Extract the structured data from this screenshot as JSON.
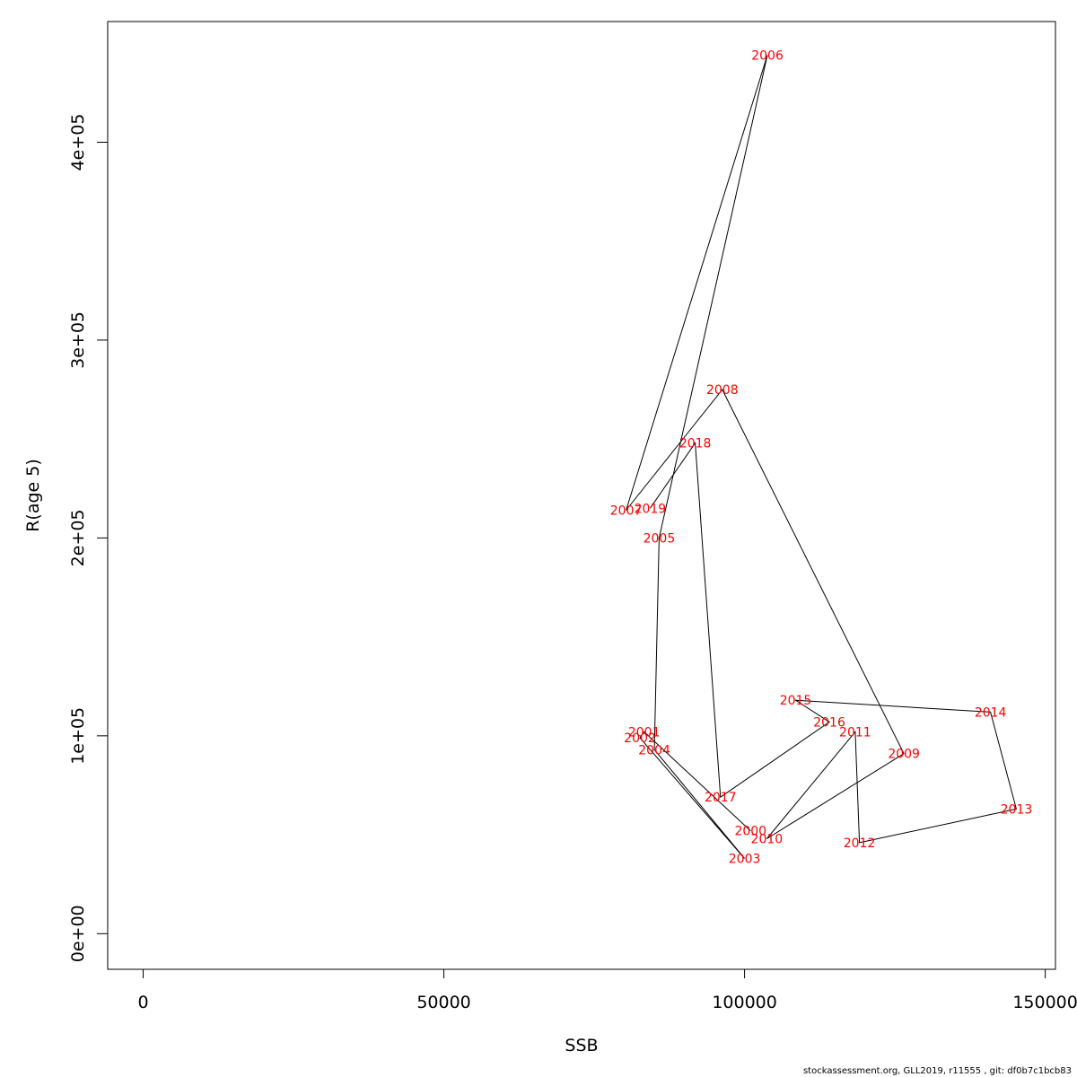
{
  "chart_data": {
    "type": "line",
    "title": "",
    "xlabel": "SSB",
    "ylabel": "R(age 5)",
    "xlim": [
      -5900,
      151700
    ],
    "ylim": [
      -18000,
      461000
    ],
    "x_ticks": [
      0,
      50000,
      100000,
      150000
    ],
    "x_tick_labels": [
      "0",
      "50000",
      "100000",
      "150000"
    ],
    "y_ticks": [
      0,
      100000,
      200000,
      300000,
      400000
    ],
    "y_tick_labels": [
      "0e+00",
      "1e+05",
      "2e+05",
      "3e+05",
      "4e+05"
    ],
    "grid": false,
    "line_color": "#000000",
    "label_color": "#ff0000",
    "points": [
      {
        "label": "2000",
        "x": 101000,
        "y": 52000
      },
      {
        "label": "2001",
        "x": 83300,
        "y": 102000
      },
      {
        "label": "2002",
        "x": 82600,
        "y": 99000
      },
      {
        "label": "2003",
        "x": 100000,
        "y": 38000
      },
      {
        "label": "2004",
        "x": 85000,
        "y": 93000
      },
      {
        "label": "2005",
        "x": 85800,
        "y": 200000
      },
      {
        "label": "2006",
        "x": 103800,
        "y": 444000
      },
      {
        "label": "2007",
        "x": 80300,
        "y": 214000
      },
      {
        "label": "2008",
        "x": 96300,
        "y": 275000
      },
      {
        "label": "2009",
        "x": 126500,
        "y": 91000
      },
      {
        "label": "2010",
        "x": 103700,
        "y": 48000
      },
      {
        "label": "2011",
        "x": 118400,
        "y": 102000
      },
      {
        "label": "2012",
        "x": 119100,
        "y": 46000
      },
      {
        "label": "2013",
        "x": 145200,
        "y": 63000
      },
      {
        "label": "2014",
        "x": 140900,
        "y": 112000
      },
      {
        "label": "2015",
        "x": 108500,
        "y": 118000
      },
      {
        "label": "2016",
        "x": 114100,
        "y": 107000
      },
      {
        "label": "2017",
        "x": 96000,
        "y": 69000
      },
      {
        "label": "2018",
        "x": 91800,
        "y": 248000
      },
      {
        "label": "2019",
        "x": 84300,
        "y": 215000
      }
    ]
  },
  "footer_text": "stockassessment.org, GLL2019, r11555 , git: df0b7c1bcb83"
}
